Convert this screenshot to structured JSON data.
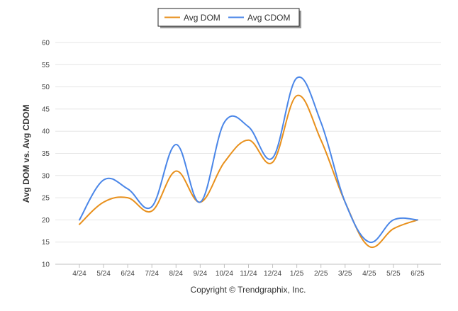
{
  "chart_data": {
    "type": "line",
    "categories": [
      "4/24",
      "5/24",
      "6/24",
      "7/24",
      "8/24",
      "9/24",
      "10/24",
      "11/24",
      "12/24",
      "1/25",
      "2/25",
      "3/25",
      "4/25",
      "5/25",
      "6/25"
    ],
    "series": [
      {
        "name": "Avg DOM",
        "color": "#e8901c",
        "values": [
          19,
          24,
          25,
          22,
          31,
          24,
          33,
          38,
          33,
          48,
          38,
          24,
          14,
          18,
          20
        ]
      },
      {
        "name": "Avg CDOM",
        "color": "#4a86e8",
        "values": [
          20,
          29,
          27,
          23,
          37,
          24,
          42,
          41,
          34,
          52,
          42,
          24,
          15,
          20,
          20
        ]
      }
    ],
    "ylabel": "Avg DOM vs. Avg CDOM",
    "xlabel": "",
    "ylim": [
      10,
      60
    ],
    "yticks": [
      10,
      15,
      20,
      25,
      30,
      35,
      40,
      45,
      50,
      55,
      60
    ],
    "grid": true,
    "legend_position": "top-center"
  },
  "footer": {
    "copyright": "Copyright © Trendgraphix, Inc."
  }
}
